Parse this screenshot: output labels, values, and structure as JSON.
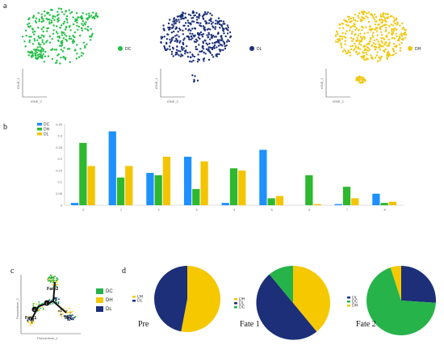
{
  "panel_labels": {
    "a": "a",
    "b": "b",
    "c": "c",
    "d": "d"
  },
  "colors": {
    "DC": "#1e90ff",
    "DH": "#2eb82e",
    "DL_bar": "#f5c400",
    "DC_tsne": "#22c046",
    "DL_tsne": "#1b2f7a",
    "DH_tsne": "#f2c80f",
    "pie_DC": "#26b34a",
    "pie_DH": "#f6c800",
    "pie_DL": "#1c2f78"
  },
  "panel_a": {
    "plots": [
      {
        "legend": "DC",
        "axis_x": "tSNE_2",
        "axis_y": "tSNE_1"
      },
      {
        "legend": "DL",
        "axis_x": "tSNE_2",
        "axis_y": "tSNE_1"
      },
      {
        "legend": "DH",
        "axis_x": "tSNE_2",
        "axis_y": "tSNE_1"
      }
    ]
  },
  "chart_data": [
    {
      "type": "bar",
      "categories": [
        "0",
        "1",
        "2",
        "3",
        "4",
        "5",
        "6",
        "7",
        "8"
      ],
      "series": [
        {
          "name": "DC",
          "values": [
            0.01,
            0.32,
            0.14,
            0.21,
            0.01,
            0.24,
            0.0,
            0.005,
            0.05
          ]
        },
        {
          "name": "DH",
          "values": [
            0.27,
            0.12,
            0.13,
            0.07,
            0.16,
            0.03,
            0.13,
            0.08,
            0.01
          ]
        },
        {
          "name": "DL",
          "values": [
            0.17,
            0.17,
            0.21,
            0.19,
            0.15,
            0.04,
            0.005,
            0.03,
            0.015
          ]
        }
      ],
      "yticks": [
        "0",
        "0.05",
        "0.1",
        "0.15",
        "0.2",
        "0.25",
        "0.3",
        "0.35"
      ],
      "ylim": [
        0,
        0.35
      ],
      "legend_position": "top-left"
    },
    {
      "type": "pie",
      "title": "Pre",
      "slices": [
        {
          "label": "DH",
          "value": 53
        },
        {
          "label": "DL",
          "value": 47
        }
      ]
    },
    {
      "type": "pie",
      "title": "Fate 1",
      "slices": [
        {
          "label": "DH",
          "value": 39
        },
        {
          "label": "DL",
          "value": 50
        },
        {
          "label": "DC",
          "value": 11
        }
      ]
    },
    {
      "type": "pie",
      "title": "Fate 2",
      "slices": [
        {
          "label": "DL",
          "value": 26
        },
        {
          "label": "DC",
          "value": 69
        },
        {
          "label": "DH",
          "value": 5
        }
      ]
    }
  ],
  "panel_c": {
    "labels": {
      "fate1": "Fate1",
      "fate2": "Fate2",
      "pre": "Pre"
    },
    "node_labels": [
      "1",
      "2"
    ],
    "axis_x": "Pseudotime_1",
    "axis_y": "Pseudotime_2",
    "legend": [
      "DC",
      "DH",
      "DL"
    ]
  },
  "pie_legends": {
    "pre": [
      "DH",
      "DL"
    ],
    "fate1": [
      "DH",
      "DL",
      "DC"
    ],
    "fate2": [
      "DL",
      "DC",
      "DH"
    ]
  }
}
